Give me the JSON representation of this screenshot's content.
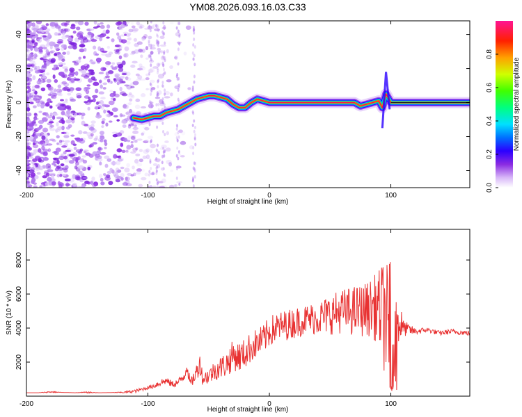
{
  "title": "YM08.2026.093.16.03.C33",
  "chart_data": [
    {
      "type": "heatmap",
      "xlabel": "Height of straight line (km)",
      "ylabel": "Frequency (Hz)",
      "xlim": [
        -200,
        165
      ],
      "ylim": [
        -50,
        48
      ],
      "xticks": [
        -200,
        -100,
        0,
        100
      ],
      "yticks": [
        -40,
        -20,
        0,
        20,
        40
      ],
      "colorbar": {
        "label": "Normalized spectral amplitude",
        "range": [
          0,
          1
        ],
        "ticks": [
          0.0,
          0.2,
          0.4,
          0.6,
          0.8
        ]
      },
      "ridge": {
        "x": [
          -112,
          -105,
          -100,
          -95,
          -90,
          -85,
          -80,
          -75,
          -70,
          -65,
          -60,
          -55,
          -50,
          -45,
          -40,
          -35,
          -30,
          -25,
          -20,
          -15,
          -10,
          -5,
          0,
          20,
          40,
          60,
          70,
          75,
          80,
          85,
          90,
          93,
          96,
          100,
          110,
          130,
          165
        ],
        "y": [
          -9,
          -10,
          -9,
          -8,
          -8,
          -6,
          -5,
          -4,
          -2,
          0,
          2,
          3,
          4,
          4,
          3,
          2,
          -1,
          -3,
          -3,
          0,
          2,
          1,
          0,
          0,
          0,
          0,
          0,
          -2,
          -1,
          0,
          1,
          -3,
          5,
          0,
          0,
          0,
          0
        ]
      }
    },
    {
      "type": "line",
      "xlabel": "Height of straight line (km)",
      "ylabel": "SNR (10 * v/v)",
      "xlim": [
        -200,
        165
      ],
      "ylim": [
        0,
        9800
      ],
      "xticks": [
        -200,
        -100,
        0,
        100
      ],
      "yticks": [
        2000,
        4000,
        6000,
        8000
      ],
      "series": [
        {
          "name": "SNR",
          "color": "#e83232",
          "x": [
            -200,
            -190,
            -180,
            -170,
            -160,
            -150,
            -140,
            -130,
            -120,
            -110,
            -100,
            -95,
            -90,
            -85,
            -80,
            -75,
            -70,
            -68,
            -65,
            -60,
            -57,
            -55,
            -50,
            -45,
            -40,
            -35,
            -30,
            -25,
            -20,
            -15,
            -10,
            -5,
            0,
            5,
            10,
            20,
            30,
            40,
            50,
            60,
            70,
            80,
            85,
            90,
            95,
            100,
            103,
            106,
            110,
            120,
            130,
            140,
            150,
            165
          ],
          "y": [
            200,
            200,
            250,
            220,
            200,
            220,
            200,
            210,
            220,
            300,
            500,
            600,
            800,
            900,
            700,
            800,
            1200,
            1800,
            700,
            1400,
            2000,
            1000,
            1200,
            1500,
            1700,
            1900,
            2400,
            2300,
            2500,
            2900,
            3100,
            3300,
            3800,
            4000,
            4100,
            4300,
            4500,
            4600,
            4800,
            5000,
            5000,
            5100,
            5200,
            5200,
            4700,
            4300,
            2500,
            4500,
            4000,
            3800,
            3900,
            3700,
            3800,
            3700
          ],
          "spike_amplitude": [
            0,
            0,
            50,
            0,
            0,
            50,
            0,
            0,
            50,
            100,
            100,
            150,
            250,
            200,
            200,
            250,
            300,
            400,
            250,
            500,
            700,
            400,
            500,
            600,
            700,
            800,
            900,
            900,
            900,
            900,
            900,
            900,
            900,
            900,
            900,
            900,
            900,
            1000,
            1200,
            1300,
            1500,
            1600,
            1800,
            2200,
            3500,
            3600,
            3500,
            2000,
            500,
            200,
            150,
            150,
            150,
            150
          ]
        }
      ]
    }
  ]
}
